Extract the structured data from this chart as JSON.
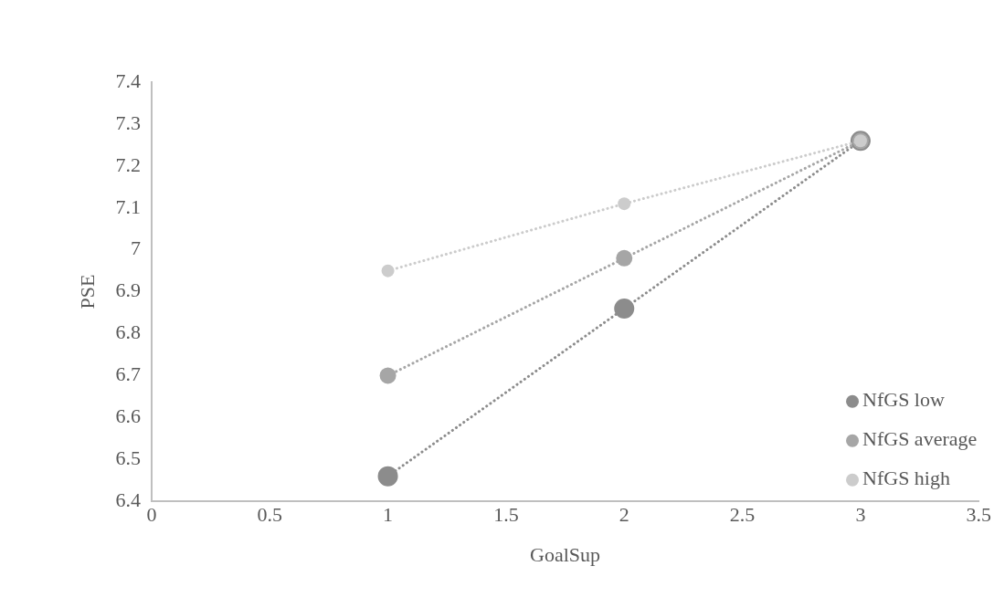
{
  "chart_data": {
    "type": "line",
    "xlabel": "GoalSup",
    "ylabel": "PSE",
    "xlim": [
      0,
      3.5
    ],
    "xticks": [
      0,
      0.5,
      1,
      1.5,
      2,
      2.5,
      3,
      3.5
    ],
    "ylim": [
      6.4,
      7.4
    ],
    "yticks": [
      6.4,
      6.5,
      6.6,
      6.7,
      6.8,
      6.9,
      7,
      7.1,
      7.2,
      7.3,
      7.4
    ],
    "x": [
      1,
      2,
      3
    ],
    "series": [
      {
        "name": "NfGS low",
        "color": "#8c8c8c",
        "values": [
          6.46,
          6.86,
          7.26
        ]
      },
      {
        "name": "NfGS average",
        "color": "#a6a6a6",
        "values": [
          6.7,
          6.98,
          7.26
        ]
      },
      {
        "name": "NfGS high",
        "color": "#cccccc",
        "values": [
          6.95,
          7.11,
          7.26
        ]
      }
    ],
    "marker": "circle",
    "line_style": "dotted",
    "grid": false,
    "legend": "bottom right"
  }
}
